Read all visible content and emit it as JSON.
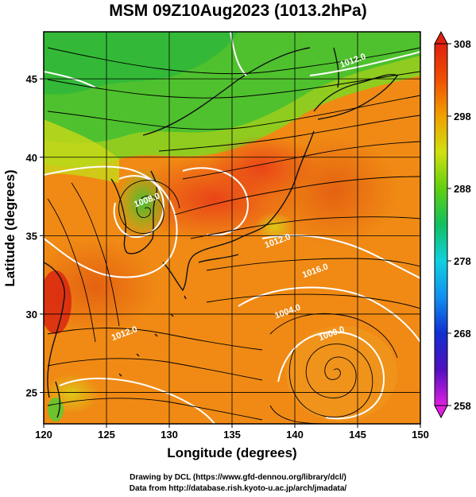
{
  "title": "MSM 09Z10Aug2023 (1013.2hPa)",
  "map": {
    "lon_range": [
      120,
      150
    ],
    "lat_range": [
      23,
      48
    ],
    "lon_ticks": [
      120,
      125,
      130,
      135,
      140,
      145,
      150
    ],
    "lat_ticks": [
      25,
      30,
      35,
      40,
      45
    ],
    "xlabel": "Longitude (degrees)",
    "ylabel": "Latitude  (degrees)",
    "grid_lines": true
  },
  "colorbar": {
    "range": [
      258,
      308
    ],
    "ticks": [
      258,
      268,
      278,
      288,
      298,
      308
    ],
    "colors": [
      "#e020e0",
      "#5010c0",
      "#1030d0",
      "#1090f0",
      "#10d0e0",
      "#10c060",
      "#60d010",
      "#d0e010",
      "#f0a000",
      "#f05000",
      "#e02010"
    ]
  },
  "contour_labels": [
    {
      "text": "1008.0",
      "lon": 128.3,
      "lat": 37.1
    },
    {
      "text": "1012.0",
      "lon": 138.7,
      "lat": 34.5
    },
    {
      "text": "1012.0",
      "lon": 144.7,
      "lat": 46.0
    },
    {
      "text": "1012.0",
      "lon": 126.5,
      "lat": 28.6
    },
    {
      "text": "1016.0",
      "lon": 141.7,
      "lat": 32.6
    },
    {
      "text": "1004.0",
      "lon": 139.5,
      "lat": 30.0
    },
    {
      "text": "1000.0",
      "lon": 143.0,
      "lat": 28.6
    }
  ],
  "credits": {
    "line1": "Drawing by DCL (https://www.gfd-dennou.org/library/dcl/)",
    "line2": "Data from http://database.rish.kyoto-u.ac.jp/arch/jmadata/"
  }
}
